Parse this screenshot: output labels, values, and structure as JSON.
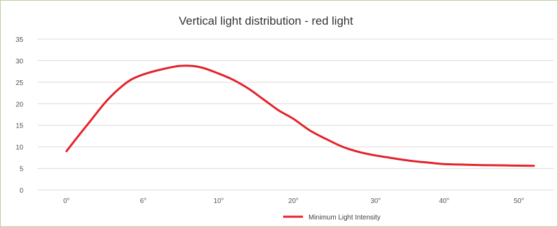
{
  "chart_data": {
    "type": "line",
    "title": "Vertical light distribution - red light",
    "xlabel": "",
    "ylabel": "",
    "categories": [
      "0°",
      "6°",
      "10°",
      "20°",
      "30°",
      "40°",
      "50°"
    ],
    "x": [
      0,
      6,
      10,
      20,
      30,
      40,
      50
    ],
    "x_tick_labels": [
      "0°",
      "6°",
      "10°",
      "20°",
      "30°",
      "40°",
      "50°"
    ],
    "ylim": [
      0,
      35
    ],
    "y_ticks": [
      0,
      5,
      10,
      15,
      20,
      25,
      30,
      35
    ],
    "grid": true,
    "legend_position": "bottom",
    "series": [
      {
        "name": "Minimum Light Intensity",
        "color": "#e3222b",
        "values": [
          9,
          26.5,
          27,
          16.5,
          8,
          6,
          5.7
        ],
        "smooth_points": [
          [
            0,
            9
          ],
          [
            1,
            12.8
          ],
          [
            2,
            16.5
          ],
          [
            3,
            20.2
          ],
          [
            4,
            23.2
          ],
          [
            5,
            25.5
          ],
          [
            6,
            26.8
          ],
          [
            7,
            28.0
          ],
          [
            8,
            28.8
          ],
          [
            9,
            28.5
          ],
          [
            10,
            27.0
          ],
          [
            12,
            25.5
          ],
          [
            14,
            23.5
          ],
          [
            16,
            21.0
          ],
          [
            18,
            18.5
          ],
          [
            20,
            16.5
          ],
          [
            22,
            13.8
          ],
          [
            24,
            11.8
          ],
          [
            26,
            10.0
          ],
          [
            28,
            8.8
          ],
          [
            30,
            8.0
          ],
          [
            32,
            7.5
          ],
          [
            34,
            7.0
          ],
          [
            36,
            6.6
          ],
          [
            38,
            6.3
          ],
          [
            40,
            6.0
          ],
          [
            42,
            5.9
          ],
          [
            44,
            5.8
          ],
          [
            46,
            5.75
          ],
          [
            48,
            5.7
          ],
          [
            50,
            5.65
          ],
          [
            52,
            5.6
          ]
        ]
      }
    ]
  }
}
